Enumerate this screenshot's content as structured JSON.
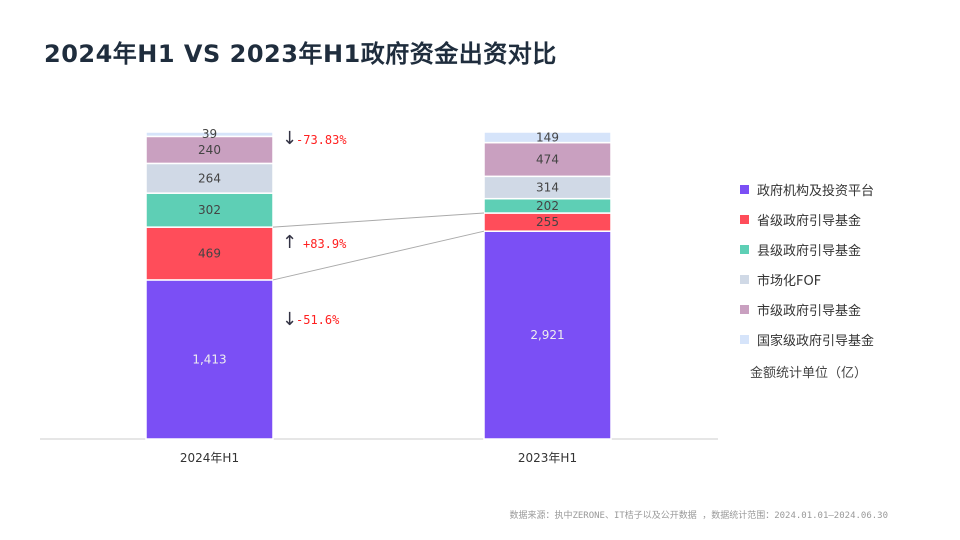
{
  "title": "2024年H1 VS 2023年H1政府资金出资对比",
  "chart_data": {
    "type": "bar",
    "stacked": true,
    "normalized": true,
    "categories": [
      "2024年H1",
      "2023年H1"
    ],
    "series": [
      {
        "name": "政府机构及投资平台",
        "color": "#7B4FF5",
        "values": [
          1413,
          2921
        ],
        "labels": [
          "1,413",
          "2,921"
        ]
      },
      {
        "name": "省级政府引导基金",
        "color": "#FF4D5A",
        "values": [
          469,
          255
        ],
        "labels": [
          "469",
          "255"
        ]
      },
      {
        "name": "县级政府引导基金",
        "color": "#5ECFB5",
        "values": [
          302,
          202
        ],
        "labels": [
          "302",
          "202"
        ]
      },
      {
        "name": "市场化FOF",
        "color": "#D0D9E6",
        "values": [
          264,
          314
        ],
        "labels": [
          "264",
          "314"
        ]
      },
      {
        "name": "市级政府引导基金",
        "color": "#C9A0C0",
        "values": [
          240,
          474
        ],
        "labels": [
          "240",
          "474"
        ]
      },
      {
        "name": "国家级政府引导基金",
        "color": "#D6E4FA",
        "values": [
          39,
          149
        ],
        "labels": [
          "39",
          "149"
        ]
      }
    ],
    "annotations": [
      {
        "text": "-73.83%",
        "direction": "down",
        "series": "国家级政府引导基金"
      },
      {
        "text": "+83.9%",
        "direction": "up",
        "series": "省级政府引导基金"
      },
      {
        "text": "-51.6%",
        "direction": "down",
        "series": "政府机构及投资平台"
      }
    ],
    "legend": "right",
    "unit_note": "金额统计单位（亿）"
  },
  "source": "数据来源：执中ZERONE、IT桔子以及公开数据 ，数据统计范围：2024.01.01—2024.06.30"
}
